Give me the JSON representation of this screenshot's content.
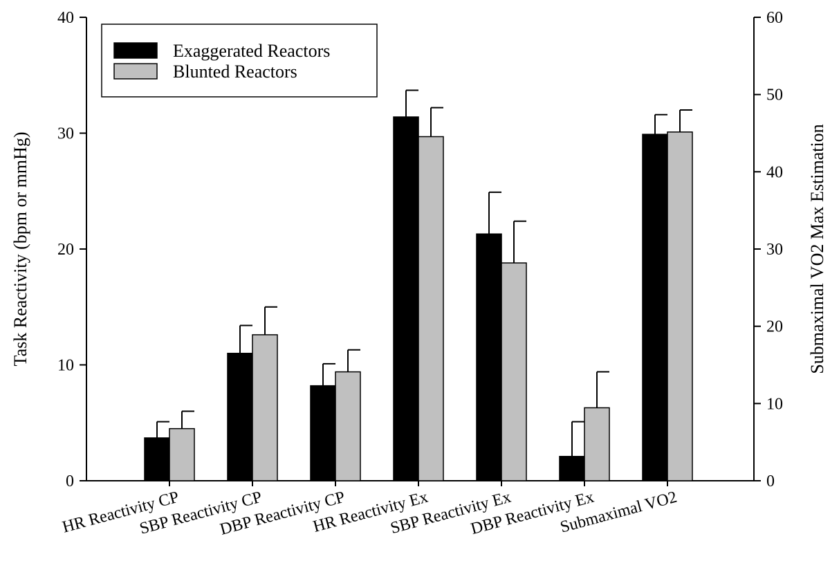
{
  "chart_data": {
    "type": "bar",
    "title": "",
    "xlabel": "",
    "ylabel": "Task Reactivity (bpm or mmHg)",
    "y2label": "Submaximal VO2 Max Estimation",
    "ylim": [
      0,
      40
    ],
    "y2lim": [
      0,
      60
    ],
    "yticks": [
      "0",
      "10",
      "20",
      "30",
      "40"
    ],
    "y2ticks": [
      "0",
      "10",
      "20",
      "30",
      "40",
      "50",
      "60"
    ],
    "categories": [
      "HR Reactivity CP",
      "SBP Reactivity CP",
      "DBP Reactivity CP",
      "HR Reactivity Ex",
      "SBP Reactivity Ex",
      "DBP Reactivity Ex",
      "Submaximal VO2"
    ],
    "series": [
      {
        "name": "Exaggerated Reactors",
        "color": "#000000",
        "values": [
          3.7,
          11.0,
          8.2,
          31.4,
          21.3,
          2.1,
          29.9
        ],
        "errors": [
          1.4,
          2.4,
          1.9,
          2.3,
          3.6,
          3.0,
          1.7
        ]
      },
      {
        "name": "Blunted Reactors",
        "color": "#c0c0c0",
        "values": [
          4.5,
          12.6,
          9.4,
          29.7,
          18.8,
          6.3,
          30.1
        ],
        "errors": [
          1.5,
          2.4,
          1.9,
          2.5,
          3.6,
          3.1,
          1.9
        ]
      }
    ],
    "legend_position": "top-left",
    "grid": false
  }
}
